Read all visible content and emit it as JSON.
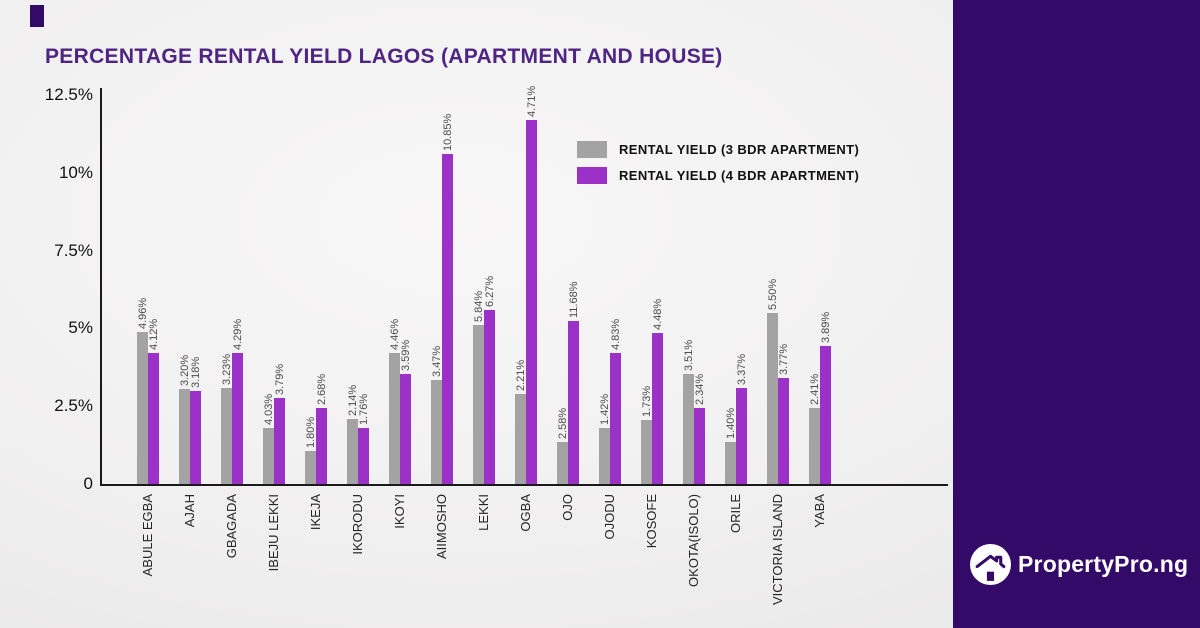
{
  "colors": {
    "panel": "#340a69",
    "title": "#4f2583",
    "axis": "#1a1a1a",
    "bar_gray": "#a3a3a3",
    "bar_purple": "#9c31c8"
  },
  "title": "PERCENTAGE RENTAL YIELD LAGOS (APARTMENT AND HOUSE)",
  "brand": {
    "icon": "house-in-circle-icon",
    "logo_text": "PropertyPro.ng"
  },
  "chart_data": {
    "type": "bar",
    "title": "PERCENTAGE RENTAL YIELD LAGOS (APARTMENT AND HOUSE)",
    "xlabel": "",
    "ylabel": "",
    "ylim": [
      0,
      12.5
    ],
    "grid": false,
    "legend_position": "inside-top-right",
    "y_ticks": [
      {
        "label": "12.5%",
        "value": 12.5
      },
      {
        "label": "10%",
        "value": 10
      },
      {
        "label": "7.5%",
        "value": 7.5
      },
      {
        "label": "5%",
        "value": 5
      },
      {
        "label": "2.5%",
        "value": 2.5
      },
      {
        "label": "0",
        "value": 0
      }
    ],
    "categories": [
      "ABULE EGBA",
      "AJAH",
      "GBAGADA",
      "IBEJU LEKKI",
      "IKEJA",
      "IKORODU",
      "IKOYI",
      "AIIMOSHO",
      "LEKKI",
      "OGBA",
      "OJO",
      "OJODU",
      "KOSOFE",
      "OKOTA(ISOLO)",
      "ORILE",
      "VICTORIA ISLAND",
      "YABA"
    ],
    "series": [
      {
        "name": "RENTAL YIELD (3 BDR APARTMENT)",
        "color": "#a3a3a3",
        "data_labels": [
          "4.96%",
          "3.20%",
          "3.23%",
          "4.03%",
          "1.80%",
          "2.14%",
          "4.46%",
          "3.47%",
          "5.84%",
          "2.21%",
          "2.58%",
          "1.42%",
          "1.73%",
          "3.51%",
          "1.40%",
          "5.50%",
          "2.41%"
        ],
        "values": [
          4.96,
          3.2,
          3.23,
          4.03,
          1.8,
          2.14,
          4.46,
          3.47,
          5.84,
          2.21,
          2.58,
          1.42,
          1.73,
          3.51,
          1.4,
          5.5,
          2.41
        ],
        "bar_heights_pct": [
          4.9,
          3.05,
          3.1,
          1.8,
          1.05,
          2.1,
          4.2,
          3.35,
          5.1,
          2.9,
          1.35,
          1.8,
          2.05,
          3.55,
          1.35,
          5.5,
          2.45
        ]
      },
      {
        "name": "RENTAL YIELD (4 BDR APARTMENT)",
        "color": "#9c31c8",
        "data_labels": [
          "4.12%",
          "3.18%",
          "4.29%",
          "3.79%",
          "2.68%",
          "1.76%",
          "3.59%",
          "10.85%",
          "6.27%",
          "4.71%",
          "11.68%",
          "4.83%",
          "4.48%",
          "2.34%",
          "3.37%",
          "3.77%",
          "3.89%"
        ],
        "values": [
          4.12,
          3.18,
          4.29,
          3.79,
          2.68,
          1.76,
          3.59,
          10.85,
          6.27,
          4.71,
          11.68,
          4.83,
          4.48,
          2.34,
          3.37,
          3.77,
          3.89
        ],
        "bar_heights_pct": [
          4.2,
          3.0,
          4.2,
          2.75,
          2.45,
          1.8,
          3.55,
          10.6,
          5.6,
          11.7,
          5.25,
          4.2,
          4.85,
          2.45,
          3.1,
          3.4,
          4.45
        ]
      }
    ]
  }
}
